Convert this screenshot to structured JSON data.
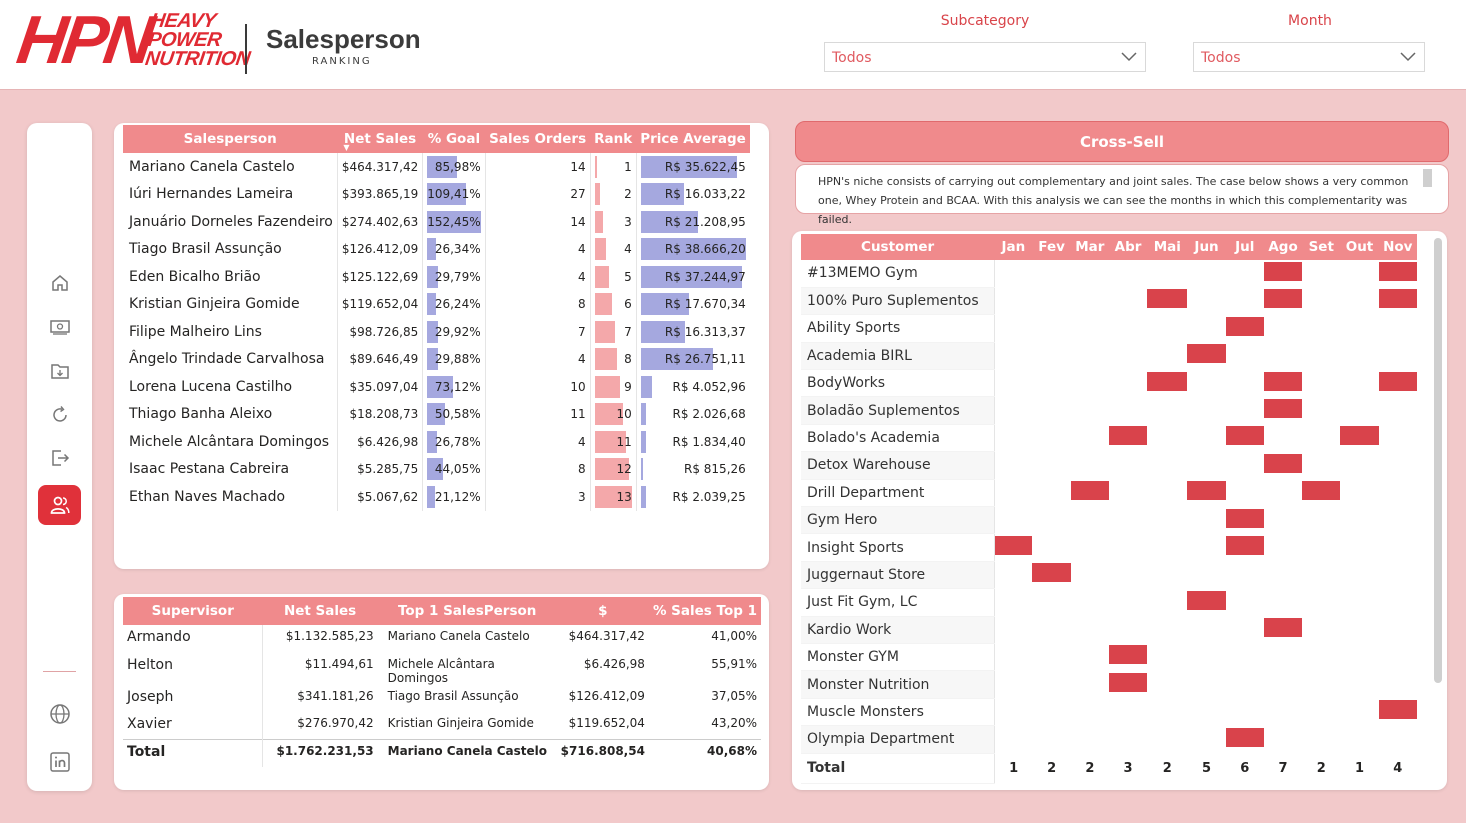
{
  "header": {
    "logo_main": "HPN",
    "logo_line1": "HEAVY",
    "logo_line2": "POWER",
    "logo_line3": "NUTRITION",
    "title": "Salesperson",
    "subtitle": "RANKING"
  },
  "filters": {
    "subcategory_label": "Subcategory",
    "subcategory_value": "Todos",
    "month_label": "Month",
    "month_value": "Todos"
  },
  "nav": {
    "items": [
      "home-icon",
      "money-icon",
      "folder-download-icon",
      "refresh-icon",
      "logout-icon",
      "users-icon"
    ],
    "active": "users-icon",
    "footer": [
      "globe-icon",
      "linkedin-icon"
    ]
  },
  "salesperson_table": {
    "columns": [
      "Salesperson",
      "Net Sales",
      "% Goal",
      "Sales Orders",
      "Rank",
      "Price Average"
    ],
    "sorted_column": "Net Sales",
    "rows": [
      {
        "name": "Mariano Canela Castelo",
        "net_sales": "$464.317,42",
        "goal": "85,98%",
        "goal_value": 85.98,
        "orders": "14",
        "rank": "1",
        "rank_value": 1,
        "price_avg": "R$ 35.622,45",
        "price_value": 35622.45
      },
      {
        "name": "Iúri Hernandes Lameira",
        "net_sales": "$393.865,19",
        "goal": "109,41%",
        "goal_value": 109.41,
        "orders": "27",
        "rank": "2",
        "rank_value": 2,
        "price_avg": "R$ 16.033,22",
        "price_value": 16033.22
      },
      {
        "name": "Januário Dorneles Fazendeiro",
        "net_sales": "$274.402,63",
        "goal": "152,45%",
        "goal_value": 152.45,
        "orders": "14",
        "rank": "3",
        "rank_value": 3,
        "price_avg": "R$ 21.208,95",
        "price_value": 21208.95
      },
      {
        "name": "Tiago Brasil Assunção",
        "net_sales": "$126.412,09",
        "goal": "26,34%",
        "goal_value": 26.34,
        "orders": "4",
        "rank": "4",
        "rank_value": 4,
        "price_avg": "R$ 38.666,20",
        "price_value": 38666.2
      },
      {
        "name": "Eden Bicalho Brião",
        "net_sales": "$125.122,69",
        "goal": "29,79%",
        "goal_value": 29.79,
        "orders": "4",
        "rank": "5",
        "rank_value": 5,
        "price_avg": "R$ 37.244,97",
        "price_value": 37244.97
      },
      {
        "name": "Kristian Ginjeira Gomide",
        "net_sales": "$119.652,04",
        "goal": "26,24%",
        "goal_value": 26.24,
        "orders": "8",
        "rank": "6",
        "rank_value": 6,
        "price_avg": "R$ 17.670,34",
        "price_value": 17670.34
      },
      {
        "name": "Filipe Malheiro Lins",
        "net_sales": "$98.726,85",
        "goal": "29,92%",
        "goal_value": 29.92,
        "orders": "7",
        "rank": "7",
        "rank_value": 7,
        "price_avg": "R$ 16.313,37",
        "price_value": 16313.37
      },
      {
        "name": "Ângelo Trindade Carvalhosa",
        "net_sales": "$89.646,49",
        "goal": "29,88%",
        "goal_value": 29.88,
        "orders": "4",
        "rank": "8",
        "rank_value": 8,
        "price_avg": "R$ 26.751,11",
        "price_value": 26751.11
      },
      {
        "name": "Lorena Lucena Castilho",
        "net_sales": "$35.097,04",
        "goal": "73,12%",
        "goal_value": 73.12,
        "orders": "10",
        "rank": "9",
        "rank_value": 9,
        "price_avg": "R$ 4.052,96",
        "price_value": 4052.96
      },
      {
        "name": "Thiago Banha Aleixo",
        "net_sales": "$18.208,73",
        "goal": "50,58%",
        "goal_value": 50.58,
        "orders": "11",
        "rank": "10",
        "rank_value": 10,
        "price_avg": "R$ 2.026,68",
        "price_value": 2026.68
      },
      {
        "name": "Michele Alcântara Domingos",
        "net_sales": "$6.426,98",
        "goal": "26,78%",
        "goal_value": 26.78,
        "orders": "4",
        "rank": "11",
        "rank_value": 11,
        "price_avg": "R$ 1.834,40",
        "price_value": 1834.4
      },
      {
        "name": "Isaac Pestana Cabreira",
        "net_sales": "$5.285,75",
        "goal": "44,05%",
        "goal_value": 44.05,
        "orders": "8",
        "rank": "12",
        "rank_value": 12,
        "price_avg": "R$ 815,26",
        "price_value": 815.26
      },
      {
        "name": "Ethan Naves Machado",
        "net_sales": "$5.067,62",
        "goal": "21,12%",
        "goal_value": 21.12,
        "orders": "3",
        "rank": "13",
        "rank_value": 13,
        "price_avg": "R$ 2.039,25",
        "price_value": 2039.25
      }
    ]
  },
  "supervisor_table": {
    "columns": [
      "Supervisor",
      "Net Sales",
      "Top 1 SalesPerson",
      "$",
      "% Sales Top 1"
    ],
    "rows": [
      {
        "name": "Armando",
        "net_sales": "$1.132.585,23",
        "top1": "Mariano Canela Castelo",
        "amount": "$464.317,42",
        "pct": "41,00%"
      },
      {
        "name": "Helton",
        "net_sales": "$11.494,61",
        "top1": "Michele Alcântara Domingos",
        "amount": "$6.426,98",
        "pct": "55,91%"
      },
      {
        "name": "Joseph",
        "net_sales": "$341.181,26",
        "top1": "Tiago Brasil Assunção",
        "amount": "$126.412,09",
        "pct": "37,05%"
      },
      {
        "name": "Xavier",
        "net_sales": "$276.970,42",
        "top1": "Kristian Ginjeira Gomide",
        "amount": "$119.652,04",
        "pct": "43,20%"
      }
    ],
    "total": {
      "name": "Total",
      "net_sales": "$1.762.231,53",
      "top1": "Mariano Canela Castelo",
      "amount": "$716.808,54",
      "pct": "40,68%"
    }
  },
  "cross_sell": {
    "title": "Cross-Sell",
    "description": "HPN's niche consists of carrying out complementary and joint sales. The case below shows a very common one, Whey Protein and BCAA. With this analysis we can see the months in which this complementarity was failed.",
    "customer_header": "Customer",
    "months": [
      "Jan",
      "Fev",
      "Mar",
      "Abr",
      "Mai",
      "Jun",
      "Jul",
      "Ago",
      "Set",
      "Out",
      "Nov"
    ],
    "customers": [
      {
        "name": "#13MEMO Gym",
        "failed": [
          "Ago",
          "Nov"
        ]
      },
      {
        "name": "100% Puro Suplementos",
        "failed": [
          "Mai",
          "Ago",
          "Nov"
        ]
      },
      {
        "name": "Ability Sports",
        "failed": [
          "Jul"
        ]
      },
      {
        "name": "Academia BIRL",
        "failed": [
          "Jun"
        ]
      },
      {
        "name": "BodyWorks",
        "failed": [
          "Mai",
          "Ago",
          "Nov"
        ]
      },
      {
        "name": "Boladão Suplementos",
        "failed": [
          "Ago"
        ]
      },
      {
        "name": "Bolado's Academia",
        "failed": [
          "Abr",
          "Jul",
          "Out"
        ]
      },
      {
        "name": "Detox Warehouse",
        "failed": [
          "Ago"
        ]
      },
      {
        "name": "Drill Department",
        "failed": [
          "Mar",
          "Jun",
          "Set"
        ]
      },
      {
        "name": "Gym Hero",
        "failed": [
          "Jul"
        ]
      },
      {
        "name": "Insight Sports",
        "failed": [
          "Jan",
          "Jul"
        ]
      },
      {
        "name": "Juggernaut Store",
        "failed": [
          "Fev"
        ]
      },
      {
        "name": "Just Fit Gym, LC",
        "failed": [
          "Jun"
        ]
      },
      {
        "name": "Kardio Work",
        "failed": [
          "Ago"
        ]
      },
      {
        "name": "Monster GYM",
        "failed": [
          "Abr"
        ]
      },
      {
        "name": "Monster Nutrition",
        "failed": [
          "Abr"
        ]
      },
      {
        "name": "Muscle Monsters",
        "failed": [
          "Nov"
        ]
      },
      {
        "name": "Olympia Department",
        "failed": [
          "Jul"
        ]
      }
    ],
    "total_label": "Total",
    "totals": [
      "1",
      "2",
      "2",
      "3",
      "2",
      "5",
      "6",
      "7",
      "2",
      "1",
      "4"
    ]
  },
  "colors": {
    "accent": "#e0313a",
    "header": "#f08a8c",
    "goal_bar": "#a5a8df",
    "rank_bar": "#f4a8aa",
    "mark": "#d9434b",
    "background": "#f2c9ca"
  }
}
